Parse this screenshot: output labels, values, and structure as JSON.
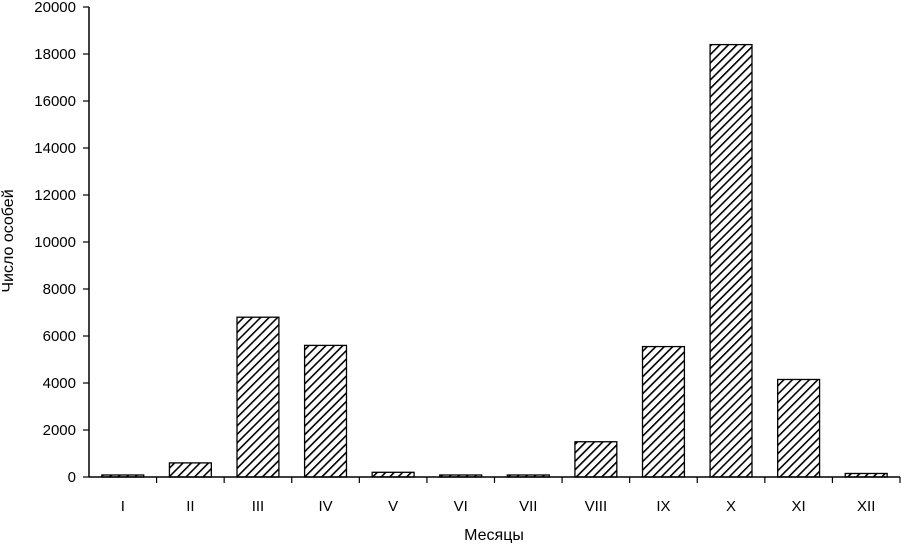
{
  "chart_data": {
    "type": "bar",
    "title": "",
    "xlabel": "Месяцы",
    "ylabel": "Число особей",
    "categories": [
      "I",
      "II",
      "III",
      "IV",
      "V",
      "VI",
      "VII",
      "VIII",
      "IX",
      "X",
      "XI",
      "XII"
    ],
    "values": [
      50,
      600,
      6800,
      5600,
      200,
      50,
      50,
      1500,
      5550,
      18400,
      4150,
      150
    ],
    "ylim": [
      0,
      20000
    ],
    "yticks": [
      "0",
      "2000",
      "4000",
      "6000",
      "8000",
      "10000",
      "12000",
      "14000",
      "16000",
      "18000",
      "20000"
    ],
    "grid": false,
    "legend": "none",
    "bar_fill": "diagonal-hatch",
    "colors": {
      "bar_stroke": "#000000",
      "hatch": "#000000",
      "background": "#ffffff"
    }
  }
}
